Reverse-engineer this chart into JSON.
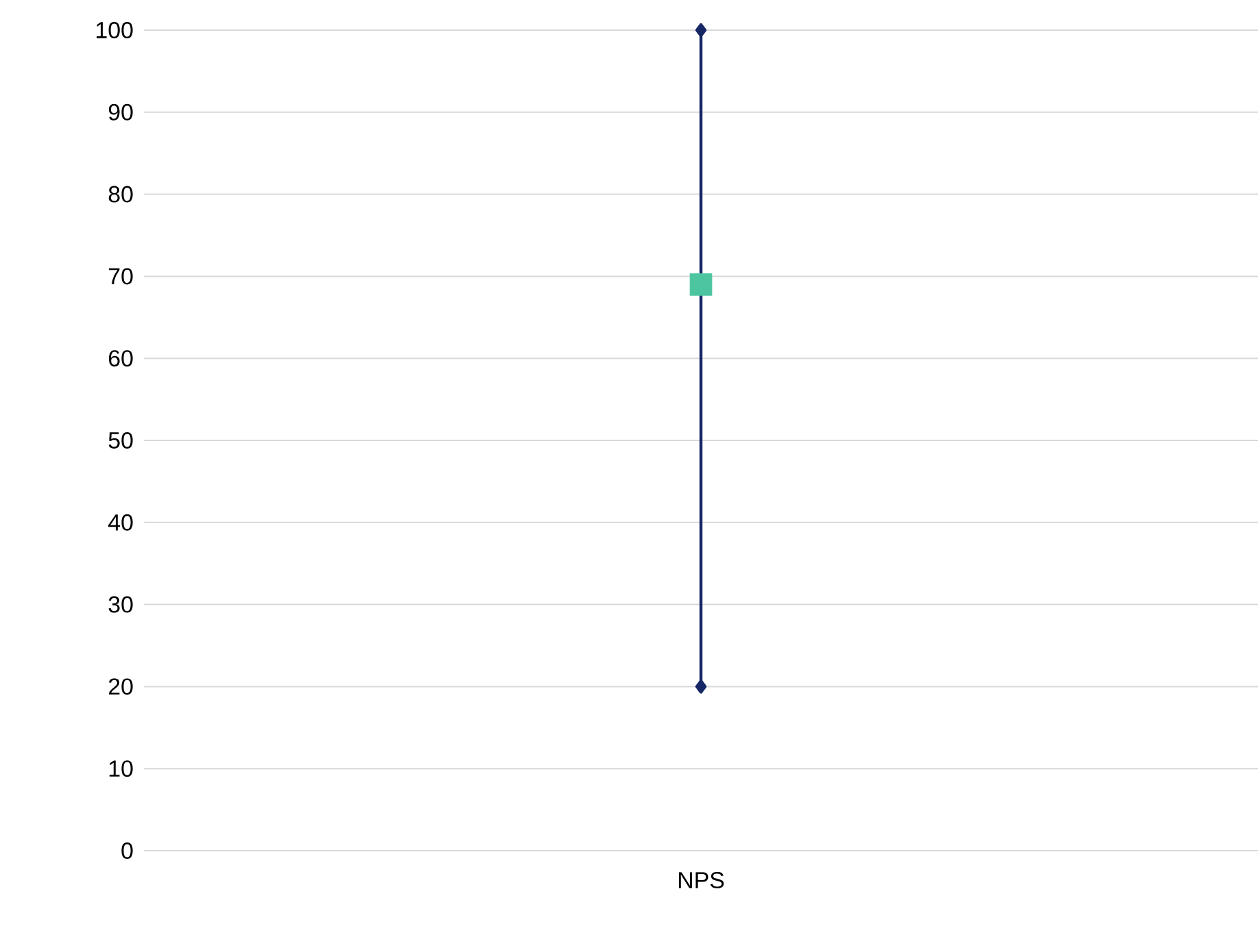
{
  "chart_data": {
    "type": "scatter",
    "categories": [
      "NPS"
    ],
    "series": [
      {
        "type": "line",
        "color": "#162765",
        "marker": "diamond",
        "x": [
          "NPS",
          "NPS"
        ],
        "values": [
          20,
          100
        ]
      },
      {
        "color": "#4cc5a0",
        "marker": "square",
        "values": [
          69
        ]
      }
    ],
    "ylim": [
      0,
      100
    ],
    "yticks": [
      0,
      10,
      20,
      30,
      40,
      50,
      60,
      70,
      80,
      90,
      100
    ],
    "grid": "y"
  }
}
